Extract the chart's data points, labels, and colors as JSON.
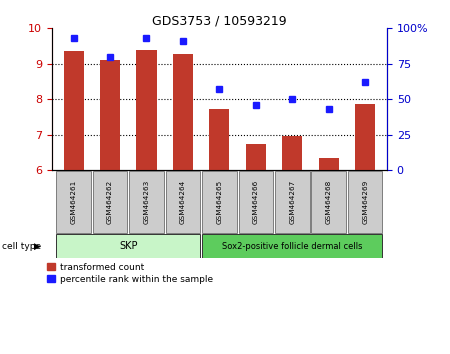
{
  "title": "GDS3753 / 10593219",
  "samples": [
    "GSM464261",
    "GSM464262",
    "GSM464263",
    "GSM464264",
    "GSM464265",
    "GSM464266",
    "GSM464267",
    "GSM464268",
    "GSM464269"
  ],
  "red_values": [
    9.37,
    9.1,
    9.38,
    9.28,
    7.72,
    6.73,
    6.97,
    6.33,
    7.85
  ],
  "blue_values": [
    93,
    80,
    93,
    91,
    57,
    46,
    50,
    43,
    62
  ],
  "ylim_left": [
    6,
    10
  ],
  "ylim_right": [
    0,
    100
  ],
  "yticks_left": [
    6,
    7,
    8,
    9,
    10
  ],
  "yticks_right": [
    0,
    25,
    50,
    75,
    100
  ],
  "yticklabels_right": [
    "0",
    "25",
    "50",
    "75",
    "100%"
  ],
  "skp_group": [
    0,
    1,
    2,
    3
  ],
  "sox2_group": [
    4,
    5,
    6,
    7,
    8
  ],
  "group_labels": [
    "SKP",
    "Sox2-positive follicle dermal cells"
  ],
  "skp_color": "#c8f5c8",
  "sox2_color": "#5dcc5d",
  "bar_color": "#c0392b",
  "dot_color": "#1a1aff",
  "bg_color": "#ffffff",
  "tick_bg": "#cccccc",
  "legend_red": "transformed count",
  "legend_blue": "percentile rank within the sample",
  "cell_type_label": "cell type",
  "left_axis_color": "#cc0000",
  "right_axis_color": "#0000cc",
  "bar_width": 0.55
}
